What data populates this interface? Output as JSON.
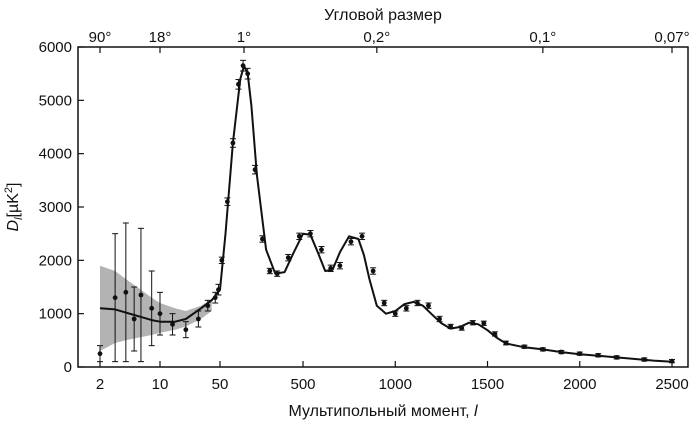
{
  "chart_data": {
    "type": "line",
    "title": "Угловой размер",
    "ylabel_main": "D",
    "ylabel_sub": "l",
    "ylabel_unit": "[µK",
    "ylabel_sup": "2",
    "ylabel_close": "]",
    "xlabel_text": "Мультипольный момент, ",
    "xlabel_var": "l",
    "x_scale": "log up to l=50, linear above",
    "xlim": [
      2,
      2500
    ],
    "ylim": [
      0,
      6000
    ],
    "x_ticks": [
      {
        "value": 2,
        "label": "2"
      },
      {
        "value": 10,
        "label": "10"
      },
      {
        "value": 50,
        "label": "50"
      },
      {
        "value": 500,
        "label": "500"
      },
      {
        "value": 1000,
        "label": "1000"
      },
      {
        "value": 1500,
        "label": "1500"
      },
      {
        "value": 2000,
        "label": "2000"
      },
      {
        "value": 2500,
        "label": "2500"
      }
    ],
    "y_ticks": [
      {
        "value": 0,
        "label": "0"
      },
      {
        "value": 1000,
        "label": "1000"
      },
      {
        "value": 2000,
        "label": "2000"
      },
      {
        "value": 3000,
        "label": "3000"
      },
      {
        "value": 4000,
        "label": "4000"
      },
      {
        "value": 5000,
        "label": "5000"
      },
      {
        "value": 6000,
        "label": "6000"
      }
    ],
    "top_ticks": [
      {
        "value": 2,
        "label": "90°"
      },
      {
        "value": 10,
        "label": "18°"
      },
      {
        "value": 180,
        "label": "1°"
      },
      {
        "value": 900,
        "label": "0,2°"
      },
      {
        "value": 1800,
        "label": "0,1°"
      },
      {
        "value": 2500,
        "label": "0,07°"
      }
    ],
    "series": [
      {
        "style": "black line",
        "x": [
          2,
          3,
          4,
          6,
          8,
          10,
          15,
          20,
          30,
          40,
          50,
          80,
          120,
          160,
          180,
          200,
          220,
          250,
          300,
          350,
          400,
          450,
          500,
          540,
          580,
          620,
          660,
          700,
          750,
          800,
          830,
          860,
          900,
          950,
          1000,
          1050,
          1100,
          1150,
          1200,
          1250,
          1300,
          1350,
          1400,
          1450,
          1500,
          1550,
          1600,
          1700,
          1800,
          1900,
          2000,
          2100,
          2200,
          2300,
          2400,
          2500
        ],
        "values": [
          1100,
          1080,
          1020,
          940,
          880,
          850,
          850,
          900,
          1100,
          1250,
          1450,
          2500,
          4200,
          5400,
          5650,
          5500,
          4900,
          3600,
          2200,
          1750,
          1780,
          2150,
          2500,
          2480,
          2150,
          1800,
          1820,
          2150,
          2450,
          2400,
          2100,
          1650,
          1150,
          1000,
          1050,
          1180,
          1220,
          1150,
          980,
          820,
          720,
          750,
          830,
          800,
          690,
          550,
          440,
          370,
          330,
          280,
          240,
          210,
          180,
          150,
          120,
          100
        ]
      },
      {
        "style": "measurement points with error bars",
        "x": [
          2,
          3,
          4,
          5,
          6,
          8,
          10,
          14,
          20,
          28,
          36,
          44,
          48,
          60,
          90,
          120,
          150,
          175,
          200,
          240,
          280,
          320,
          360,
          420,
          480,
          540,
          600,
          650,
          700,
          760,
          820,
          880,
          940,
          1000,
          1060,
          1120,
          1180,
          1240,
          1300,
          1360,
          1420,
          1480,
          1540,
          1600,
          1700,
          1800,
          1900,
          2000,
          2100,
          2200,
          2350,
          2500
        ],
        "values": [
          250,
          1300,
          1400,
          900,
          1350,
          1100,
          1000,
          800,
          700,
          900,
          1150,
          1300,
          1450,
          2000,
          3100,
          4200,
          5300,
          5650,
          5500,
          3700,
          2400,
          1800,
          1750,
          2050,
          2450,
          2500,
          2200,
          1850,
          1900,
          2350,
          2450,
          1800,
          1200,
          1000,
          1100,
          1200,
          1150,
          900,
          760,
          730,
          830,
          820,
          620,
          450,
          380,
          330,
          280,
          250,
          220,
          180,
          140,
          110
        ],
        "errors": [
          150,
          1200,
          1300,
          600,
          1250,
          700,
          400,
          200,
          150,
          150,
          100,
          100,
          100,
          60,
          70,
          80,
          90,
          100,
          100,
          80,
          60,
          50,
          50,
          60,
          60,
          60,
          60,
          60,
          60,
          60,
          60,
          60,
          50,
          50,
          50,
          50,
          50,
          50,
          40,
          40,
          40,
          40,
          40,
          35,
          30,
          30,
          30,
          30,
          30,
          30,
          30,
          30
        ]
      },
      {
        "style": "grey cosmic-variance band",
        "x": [
          2,
          3,
          4,
          6,
          8,
          10,
          15,
          20,
          30,
          40
        ],
        "upper": [
          1900,
          1800,
          1650,
          1450,
          1300,
          1200,
          1100,
          1050,
          1150,
          1280
        ],
        "lower": [
          300,
          450,
          500,
          560,
          600,
          640,
          700,
          760,
          900,
          1050
        ]
      }
    ]
  }
}
